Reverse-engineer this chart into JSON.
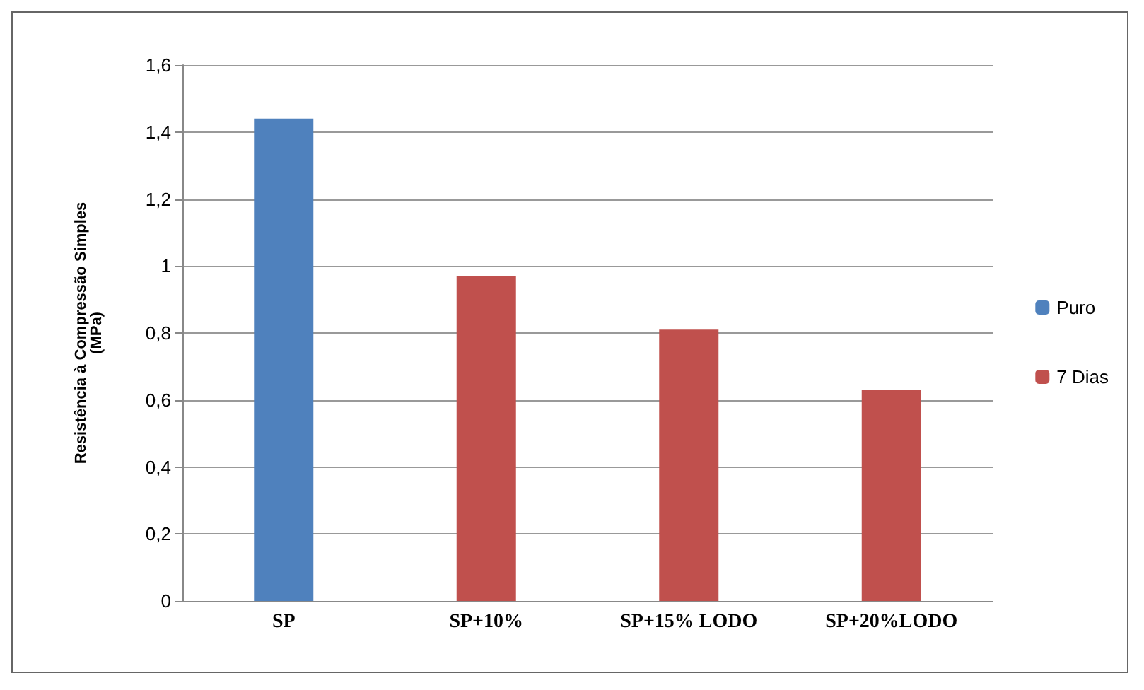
{
  "chart_data": {
    "type": "bar",
    "ylabel": "Resistência à Compressão Simples\n(MPa)",
    "categories": [
      "SP",
      "SP+10%",
      "SP+15% LODO",
      "SP+20%LODO"
    ],
    "series": [
      {
        "name": "Puro",
        "color": "#4f81bd",
        "values": [
          1.44,
          null,
          null,
          null
        ]
      },
      {
        "name": "7 Dias",
        "color": "#c0504d",
        "values": [
          null,
          0.97,
          0.81,
          0.63
        ]
      }
    ],
    "ylim": [
      0,
      1.6
    ],
    "yticks": [
      0,
      {
        "value": 0.2,
        "label": "0,2"
      },
      {
        "value": 0.4,
        "label": "0,4"
      },
      {
        "value": 0.6,
        "label": "0,6"
      },
      {
        "value": 0.8,
        "label": "0,8"
      },
      1,
      {
        "value": 1.2,
        "label": "1,2"
      },
      {
        "value": 1.4,
        "label": "1,4"
      },
      {
        "value": 1.6,
        "label": "1,6"
      }
    ],
    "grid": "y",
    "legend": "right"
  }
}
